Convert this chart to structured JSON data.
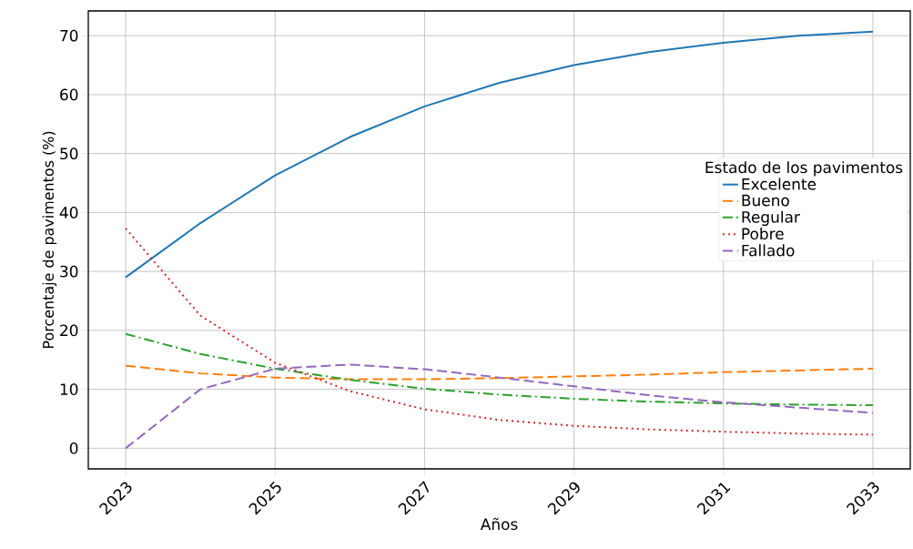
{
  "chart_data": {
    "type": "line",
    "xlabel": "Años",
    "ylabel": "Porcentaje de pavimentos (%)",
    "legend_title": "Estado de los pavimentos",
    "x": [
      2023,
      2024,
      2025,
      2026,
      2027,
      2028,
      2029,
      2030,
      2031,
      2032,
      2033
    ],
    "series": [
      {
        "name": "Excelente",
        "color": "#1f77b4",
        "line_style": "solid",
        "values": [
          29,
          38.2,
          46.3,
          52.8,
          58,
          62,
          65,
          67.2,
          68.8,
          70,
          70.7
        ]
      },
      {
        "name": "Bueno",
        "color": "#ff7f0e",
        "line_style": "dashed",
        "values": [
          14,
          12.7,
          12,
          11.7,
          11.7,
          11.9,
          12.2,
          12.5,
          12.9,
          13.2,
          13.5
        ]
      },
      {
        "name": "Regular",
        "color": "#2ca02c",
        "line_style": "dashdot",
        "values": [
          19.4,
          16,
          13.5,
          11.6,
          10.1,
          9.1,
          8.4,
          7.9,
          7.6,
          7.4,
          7.3
        ]
      },
      {
        "name": "Pobre",
        "color": "#d62728",
        "line_style": "dotted",
        "values": [
          37.3,
          22.5,
          14.5,
          9.7,
          6.6,
          4.8,
          3.8,
          3.2,
          2.8,
          2.5,
          2.3
        ]
      },
      {
        "name": "Fallado",
        "color": "#9467bd",
        "line_style": "dashed",
        "values": [
          0,
          10,
          13.5,
          14.2,
          13.4,
          12,
          10.5,
          9,
          7.8,
          6.9,
          6
        ]
      }
    ],
    "xlim": [
      2022.5,
      2033.5
    ],
    "ylim": [
      -3.5,
      74.2
    ],
    "xticks": [
      2023,
      2025,
      2027,
      2029,
      2031,
      2033
    ],
    "yticks": [
      0,
      10,
      20,
      30,
      40,
      50,
      60,
      70
    ],
    "grid": true,
    "legend": "right"
  }
}
